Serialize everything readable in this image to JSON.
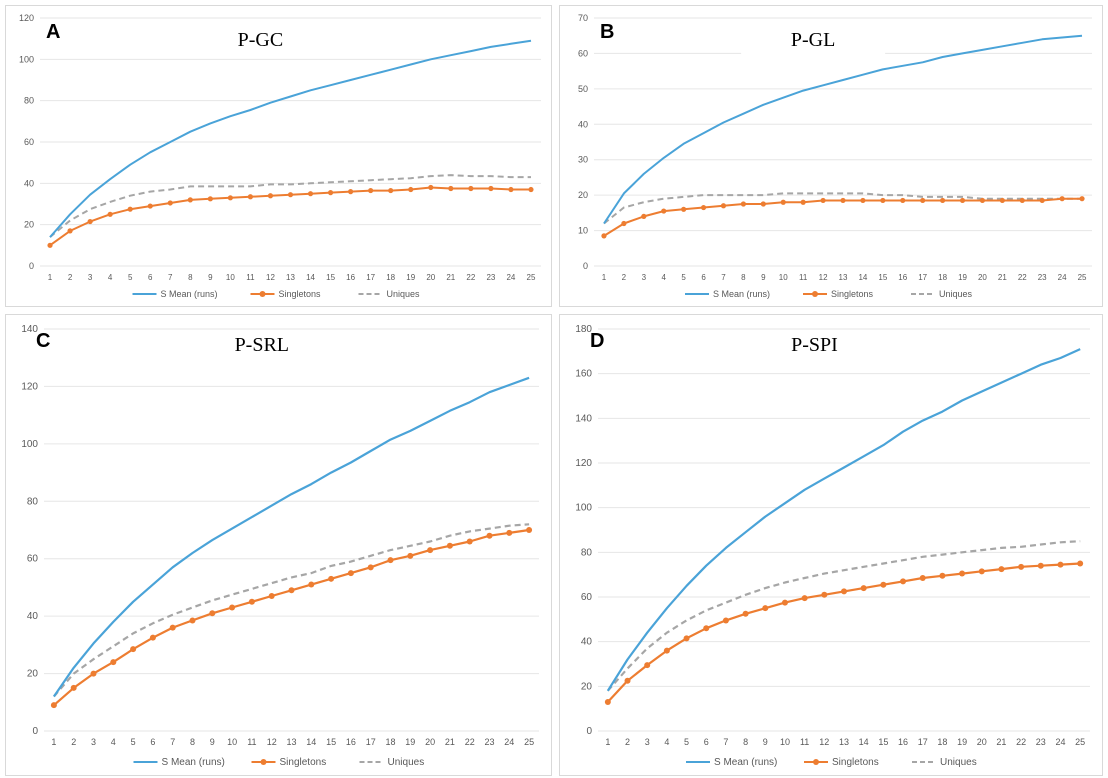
{
  "colors": {
    "s_mean": "#4aa3d8",
    "singletons": "#ed7d31",
    "uniques": "#a6a6a6",
    "grid": "#e6e6e6",
    "tick_text": "#595959"
  },
  "chart_data": [
    {
      "type": "line",
      "panel_letter": "A",
      "title": "P-GC",
      "x": [
        1,
        2,
        3,
        4,
        5,
        6,
        7,
        8,
        9,
        10,
        11,
        12,
        13,
        14,
        15,
        16,
        17,
        18,
        19,
        20,
        21,
        22,
        23,
        24,
        25
      ],
      "ylim": [
        0,
        120
      ],
      "yticks": [
        0,
        20,
        40,
        60,
        80,
        100,
        120
      ],
      "grid": true,
      "legend_position": "bottom",
      "series": [
        {
          "name": "S Mean (runs)",
          "style": "solid",
          "values": [
            14,
            25,
            34.5,
            42,
            49,
            55,
            60,
            65,
            69,
            72.5,
            75.5,
            79,
            82,
            85,
            87.5,
            90,
            92.5,
            95,
            97.5,
            100,
            102,
            104,
            106,
            107.5,
            109
          ]
        },
        {
          "name": "Singletons",
          "style": "markers",
          "values": [
            10,
            17,
            21.5,
            25,
            27.5,
            29,
            30.5,
            32,
            32.5,
            33,
            33.5,
            34,
            34.5,
            35,
            35.5,
            36,
            36.5,
            36.5,
            37,
            38,
            37.5,
            37.5,
            37.5,
            37,
            37
          ]
        },
        {
          "name": "Uniques",
          "style": "dashed",
          "values": [
            14,
            22,
            27.5,
            31,
            34,
            36,
            37,
            38.5,
            38.5,
            38.5,
            38.5,
            39.5,
            39.5,
            40,
            40.5,
            41,
            41.5,
            42,
            42.5,
            43.5,
            44,
            43.5,
            43.5,
            43,
            43
          ]
        }
      ]
    },
    {
      "type": "line",
      "panel_letter": "B",
      "title": "P-GL",
      "x": [
        1,
        2,
        3,
        4,
        5,
        6,
        7,
        8,
        9,
        10,
        11,
        12,
        13,
        14,
        15,
        16,
        17,
        18,
        19,
        20,
        21,
        22,
        23,
        24,
        25
      ],
      "ylim": [
        0,
        70
      ],
      "yticks": [
        0,
        10,
        20,
        30,
        40,
        50,
        60,
        70
      ],
      "grid": true,
      "legend_position": "bottom",
      "series": [
        {
          "name": "S Mean (runs)",
          "style": "solid",
          "values": [
            12,
            20.5,
            26,
            30.5,
            34.5,
            37.5,
            40.5,
            43,
            45.5,
            47.5,
            49.5,
            51,
            52.5,
            54,
            55.5,
            56.5,
            57.5,
            59,
            60,
            61,
            62,
            63,
            64,
            64.5,
            65
          ]
        },
        {
          "name": "Singletons",
          "style": "markers",
          "values": [
            8.5,
            12,
            14,
            15.5,
            16,
            16.5,
            17,
            17.5,
            17.5,
            18,
            18,
            18.5,
            18.5,
            18.5,
            18.5,
            18.5,
            18.5,
            18.5,
            18.5,
            18.5,
            18.5,
            18.5,
            18.5,
            19,
            19
          ]
        },
        {
          "name": "Uniques",
          "style": "dashed",
          "values": [
            12,
            16.5,
            18,
            19,
            19.5,
            20,
            20,
            20,
            20,
            20.5,
            20.5,
            20.5,
            20.5,
            20.5,
            20,
            20,
            19.5,
            19.5,
            19.5,
            19,
            19,
            19,
            19,
            19,
            19
          ]
        }
      ]
    },
    {
      "type": "line",
      "panel_letter": "C",
      "title": "P-SRL",
      "x": [
        1,
        2,
        3,
        4,
        5,
        6,
        7,
        8,
        9,
        10,
        11,
        12,
        13,
        14,
        15,
        16,
        17,
        18,
        19,
        20,
        21,
        22,
        23,
        24,
        25
      ],
      "ylim": [
        0,
        140
      ],
      "yticks": [
        0,
        20,
        40,
        60,
        80,
        100,
        120,
        140
      ],
      "grid": true,
      "legend_position": "bottom",
      "series": [
        {
          "name": "S Mean (runs)",
          "style": "solid",
          "values": [
            12,
            22,
            30.5,
            38,
            45,
            51,
            57,
            62,
            66.5,
            70.5,
            74.5,
            78.5,
            82.5,
            86,
            90,
            93.5,
            97.5,
            101.5,
            104.5,
            108,
            111.5,
            114.5,
            118,
            120.5,
            123
          ]
        },
        {
          "name": "Singletons",
          "style": "markers",
          "values": [
            9,
            15,
            20,
            24,
            28.5,
            32.5,
            36,
            38.5,
            41,
            43,
            45,
            47,
            49,
            51,
            53,
            55,
            57,
            59.5,
            61,
            63,
            64.5,
            66,
            68,
            69,
            70
          ]
        },
        {
          "name": "Uniques",
          "style": "dashed",
          "values": [
            12,
            20,
            25,
            29.5,
            34,
            37.5,
            40.5,
            43,
            45.5,
            47.5,
            49.5,
            51.5,
            53.5,
            55,
            57.5,
            59,
            61,
            63,
            64.5,
            66,
            68,
            69.5,
            70.5,
            71.5,
            72
          ]
        }
      ]
    },
    {
      "type": "line",
      "panel_letter": "D",
      "title": "P-SPI",
      "x": [
        1,
        2,
        3,
        4,
        5,
        6,
        7,
        8,
        9,
        10,
        11,
        12,
        13,
        14,
        15,
        16,
        17,
        18,
        19,
        20,
        21,
        22,
        23,
        24,
        25
      ],
      "ylim": [
        0,
        180
      ],
      "yticks": [
        0,
        20,
        40,
        60,
        80,
        100,
        120,
        140,
        160,
        180
      ],
      "grid": true,
      "legend_position": "bottom",
      "series": [
        {
          "name": "S Mean (runs)",
          "style": "solid",
          "values": [
            18,
            32,
            44,
            55,
            65,
            74,
            82,
            89,
            96,
            102,
            108,
            113,
            118,
            123,
            128,
            134,
            139,
            143,
            148,
            152,
            156,
            160,
            164,
            167,
            171
          ]
        },
        {
          "name": "Singletons",
          "style": "markers",
          "values": [
            13,
            22.5,
            29.5,
            36,
            41.5,
            46,
            49.5,
            52.5,
            55,
            57.5,
            59.5,
            61,
            62.5,
            64,
            65.5,
            67,
            68.5,
            69.5,
            70.5,
            71.5,
            72.5,
            73.5,
            74,
            74.5,
            75
          ]
        },
        {
          "name": "Uniques",
          "style": "dashed",
          "values": [
            18,
            28,
            37,
            44,
            49.5,
            54,
            57.5,
            61,
            64,
            66.5,
            68.5,
            70.5,
            72,
            73.5,
            75,
            76.5,
            78,
            79,
            80,
            81,
            82,
            82.5,
            83.5,
            84.5,
            85
          ]
        }
      ]
    }
  ]
}
